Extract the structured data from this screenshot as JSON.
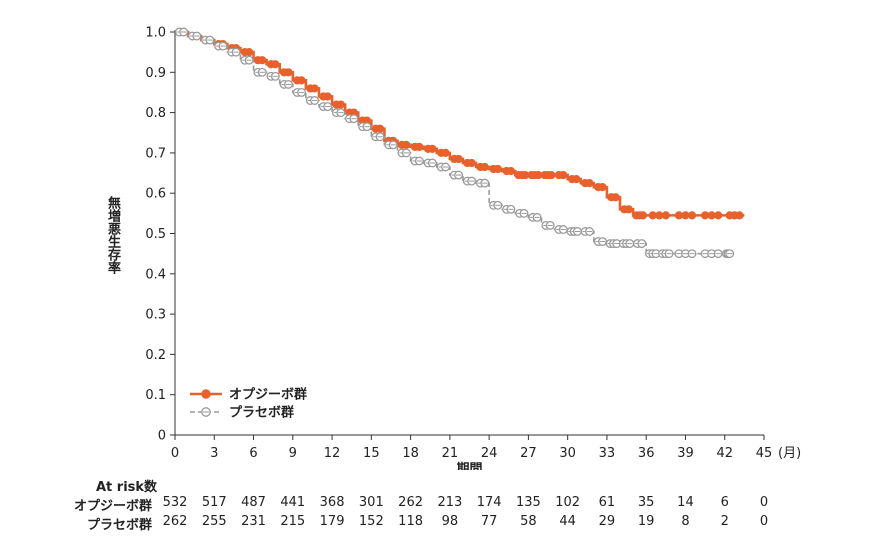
{
  "chart_data": {
    "type": "line",
    "subtype": "kaplan-meier",
    "xlabel": "期間",
    "ylabel": "無増悪生存率",
    "x_unit": "(月)",
    "xlim": [
      0,
      45
    ],
    "ylim": [
      0,
      1.0
    ],
    "x_ticks": [
      0,
      3,
      6,
      9,
      12,
      15,
      18,
      21,
      24,
      27,
      30,
      33,
      36,
      39,
      42,
      45
    ],
    "y_ticks": [
      "0",
      "0.1",
      "0.2",
      "0.3",
      "0.4",
      "0.5",
      "0.6",
      "0.7",
      "0.8",
      "0.9",
      "1.0"
    ],
    "grid": false,
    "legend_position": "bottom-left",
    "series": [
      {
        "name": "オプジーボ群",
        "color": "#e8612c",
        "marker": "filled-circle",
        "line": "solid",
        "x": [
          0,
          1,
          2,
          3,
          4,
          5,
          6,
          7,
          8,
          9,
          10,
          11,
          12,
          13,
          14,
          15,
          16,
          17,
          18,
          19,
          20,
          21,
          22,
          23,
          24,
          25,
          26,
          27,
          28,
          29,
          30,
          31,
          32,
          33,
          34,
          35,
          36,
          38,
          40,
          42,
          43.5
        ],
        "y": [
          1.0,
          0.99,
          0.98,
          0.97,
          0.96,
          0.95,
          0.93,
          0.92,
          0.9,
          0.88,
          0.86,
          0.84,
          0.82,
          0.8,
          0.78,
          0.76,
          0.73,
          0.72,
          0.715,
          0.71,
          0.7,
          0.685,
          0.675,
          0.665,
          0.66,
          0.655,
          0.645,
          0.645,
          0.645,
          0.645,
          0.635,
          0.625,
          0.615,
          0.59,
          0.56,
          0.545,
          0.545,
          0.545,
          0.545,
          0.545,
          0.545
        ]
      },
      {
        "name": "プラセボ群",
        "color": "#9a9a9a",
        "marker": "open-circle",
        "line": "dashed",
        "x": [
          0,
          1,
          2,
          3,
          4,
          5,
          6,
          7,
          8,
          9,
          10,
          11,
          12,
          13,
          14,
          15,
          16,
          17,
          18,
          19,
          20,
          21,
          22,
          23,
          24,
          25,
          26,
          27,
          28,
          29,
          30,
          31,
          32,
          33,
          34,
          35,
          36,
          37,
          38,
          40,
          42,
          42.5
        ],
        "y": [
          1.0,
          0.99,
          0.98,
          0.965,
          0.95,
          0.93,
          0.9,
          0.89,
          0.87,
          0.85,
          0.83,
          0.815,
          0.8,
          0.785,
          0.765,
          0.74,
          0.72,
          0.7,
          0.68,
          0.675,
          0.665,
          0.645,
          0.63,
          0.625,
          0.57,
          0.56,
          0.55,
          0.54,
          0.52,
          0.51,
          0.505,
          0.505,
          0.48,
          0.475,
          0.475,
          0.475,
          0.45,
          0.45,
          0.45,
          0.45,
          0.45,
          0.45
        ]
      }
    ]
  },
  "risk_table": {
    "title": "At risk数",
    "times": [
      0,
      3,
      6,
      9,
      12,
      15,
      18,
      21,
      24,
      27,
      30,
      33,
      36,
      39,
      42,
      45
    ],
    "rows": [
      {
        "label": "オプジーボ群",
        "values": [
          "532",
          "517",
          "487",
          "441",
          "368",
          "301",
          "262",
          "213",
          "174",
          "135",
          "102",
          "61",
          "35",
          "14",
          "6",
          "0"
        ]
      },
      {
        "label": "プラセボ群",
        "values": [
          "262",
          "255",
          "231",
          "215",
          "179",
          "152",
          "118",
          "98",
          "77",
          "58",
          "44",
          "29",
          "19",
          "8",
          "2",
          "0"
        ]
      }
    ]
  }
}
